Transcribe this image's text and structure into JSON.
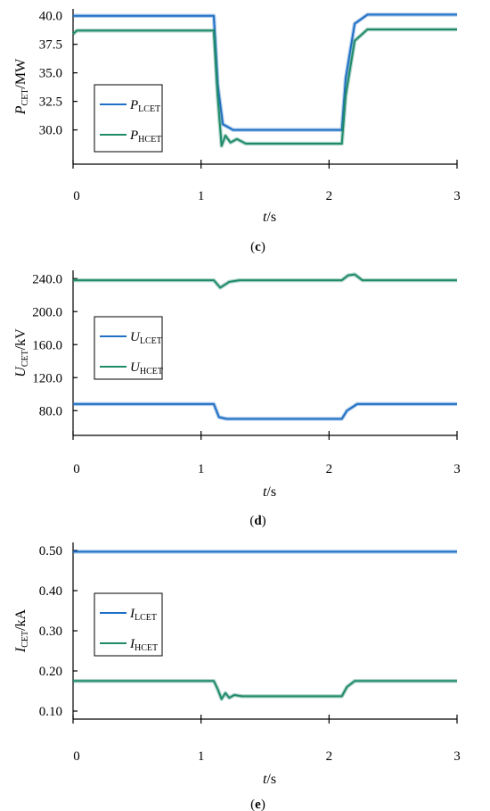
{
  "chart_data": [
    {
      "type": "line",
      "panel": "c",
      "caption": "(c)",
      "ylabel": {
        "main": "P",
        "sub": "CET",
        "unit": "/MW"
      },
      "xlabel": {
        "main": "t",
        "unit": "/s"
      },
      "xlim": [
        0,
        3
      ],
      "ylim": [
        27.0,
        40.6
      ],
      "xticks": [
        "0",
        "1",
        "2",
        "3"
      ],
      "yticks": [
        "40.0",
        "37.5",
        "35.0",
        "32.5",
        "30.0"
      ],
      "ytick_values": [
        40.0,
        37.5,
        35.0,
        32.5,
        30.0
      ],
      "legend": {
        "position": "left-lower"
      },
      "series": [
        {
          "name": "P",
          "name_sub": "LCET",
          "color": "#1f6fc5",
          "x": [
            0.0,
            1.1,
            1.13,
            1.17,
            1.25,
            2.1,
            2.13,
            2.2,
            2.3,
            3.0
          ],
          "y": [
            40.0,
            40.0,
            34.0,
            30.5,
            30.0,
            30.0,
            34.5,
            39.3,
            40.1,
            40.1
          ]
        },
        {
          "name": "P",
          "name_sub": "HCET",
          "color": "#1f8a6a",
          "x": [
            0.0,
            0.03,
            1.1,
            1.13,
            1.16,
            1.19,
            1.23,
            1.28,
            1.35,
            2.1,
            2.13,
            2.2,
            2.3,
            3.0
          ],
          "y": [
            38.4,
            38.7,
            38.7,
            33.0,
            28.6,
            29.5,
            28.9,
            29.2,
            28.8,
            28.8,
            33.0,
            37.8,
            38.8,
            38.8
          ]
        }
      ]
    },
    {
      "type": "line",
      "panel": "d",
      "caption": "(d)",
      "ylabel": {
        "main": "U",
        "sub": "CET",
        "unit": "/kV"
      },
      "xlabel": {
        "main": "t",
        "unit": "/s"
      },
      "xlim": [
        0,
        3
      ],
      "ylim": [
        50,
        250
      ],
      "xticks": [
        "0",
        "1",
        "2",
        "3"
      ],
      "yticks": [
        "240.0",
        "200.0",
        "160.0",
        "120.0",
        "80.0"
      ],
      "ytick_values": [
        240,
        200,
        160,
        120,
        80
      ],
      "legend": {
        "position": "left-middle"
      },
      "series": [
        {
          "name": "U",
          "name_sub": "LCET",
          "color": "#1f6fc5",
          "x": [
            0.0,
            1.1,
            1.14,
            1.2,
            2.1,
            2.14,
            2.22,
            3.0
          ],
          "y": [
            88,
            88,
            72,
            70,
            70,
            80,
            88,
            88
          ]
        },
        {
          "name": "U",
          "name_sub": "HCET",
          "color": "#1f8a6a",
          "x": [
            0.0,
            1.1,
            1.15,
            1.22,
            1.3,
            2.1,
            2.15,
            2.2,
            2.26,
            3.0
          ],
          "y": [
            238,
            238,
            229,
            236,
            238,
            238,
            244,
            245,
            238,
            238
          ]
        }
      ]
    },
    {
      "type": "line",
      "panel": "e",
      "caption": "(e)",
      "ylabel": {
        "main": "I",
        "sub": "CET",
        "unit": "/kA"
      },
      "xlabel": {
        "main": "t",
        "unit": "/s"
      },
      "xlim": [
        0,
        3
      ],
      "ylim": [
        0.08,
        0.52
      ],
      "xticks": [
        "0",
        "1",
        "2",
        "3"
      ],
      "yticks": [
        "0.50",
        "0.40",
        "0.30",
        "0.20",
        "0.10"
      ],
      "ytick_values": [
        0.5,
        0.4,
        0.3,
        0.2,
        0.1
      ],
      "legend": {
        "position": "left-middle"
      },
      "series": [
        {
          "name": "I",
          "name_sub": "LCET",
          "color": "#1f6fc5",
          "x": [
            0.0,
            3.0
          ],
          "y": [
            0.497,
            0.497
          ]
        },
        {
          "name": "I",
          "name_sub": "HCET",
          "color": "#1f8a6a",
          "x": [
            0.0,
            1.1,
            1.13,
            1.16,
            1.19,
            1.22,
            1.26,
            1.32,
            2.1,
            2.14,
            2.2,
            3.0
          ],
          "y": [
            0.175,
            0.175,
            0.155,
            0.13,
            0.145,
            0.133,
            0.14,
            0.137,
            0.137,
            0.16,
            0.175,
            0.175
          ]
        }
      ]
    }
  ]
}
